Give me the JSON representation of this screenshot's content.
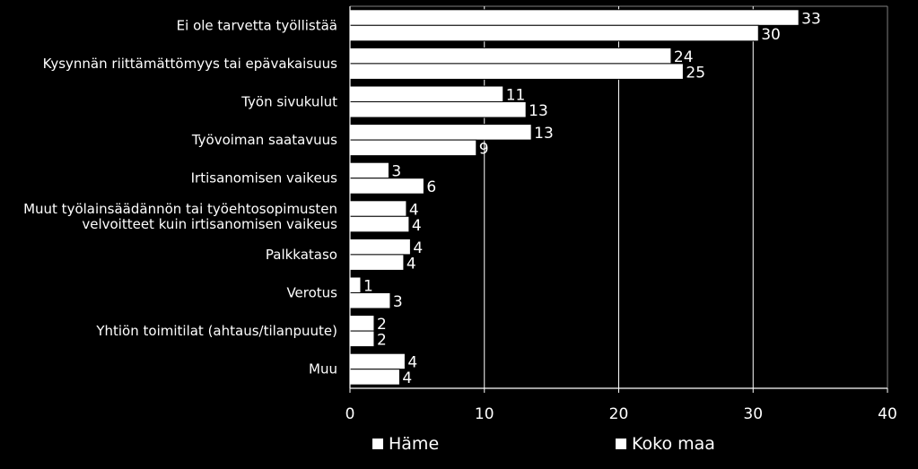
{
  "chart_data": {
    "type": "bar",
    "orientation": "horizontal",
    "categories": [
      "Ei ole tarvetta työllistää",
      "Kysynnän riittämättömyys tai epävakaisuus",
      "Työn sivukulut",
      "Työvoiman saatavuus",
      "Irtisanomisen vaikeus",
      "Muut työlainsäädännön tai työehtosopimusten velvoitteet kuin irtisanomisen vaikeus",
      "Palkkataso",
      "Verotus",
      "Yhtiön toimitilat (ahtaus/tilanpuute)",
      "Muu"
    ],
    "category_lines": [
      [
        "Ei ole tarvetta työllistää"
      ],
      [
        "Kysynnän riittämättömyys tai epävakaisuus"
      ],
      [
        "Työn sivukulut"
      ],
      [
        "Työvoiman saatavuus"
      ],
      [
        "Irtisanomisen vaikeus"
      ],
      [
        "Muut työlainsäädännön tai työehtosopimusten",
        "velvoitteet kuin irtisanomisen vaikeus"
      ],
      [
        "Palkkataso"
      ],
      [
        "Verotus"
      ],
      [
        "Yhtiön toimitilat (ahtaus/tilanpuute)"
      ],
      [
        "Muu"
      ]
    ],
    "series": [
      {
        "name": "Häme",
        "values": [
          33,
          24,
          11,
          13,
          3,
          4,
          4,
          1,
          2,
          4
        ],
        "plot_values": [
          33.4,
          23.9,
          11.4,
          13.5,
          2.9,
          4.2,
          4.5,
          0.8,
          1.8,
          4.1
        ]
      },
      {
        "name": "Koko maa",
        "values": [
          30,
          25,
          13,
          9,
          6,
          4,
          4,
          3,
          2,
          4
        ],
        "plot_values": [
          30.4,
          24.8,
          13.1,
          9.4,
          5.5,
          4.4,
          4.0,
          3.0,
          1.8,
          3.7
        ]
      }
    ],
    "xlim": [
      0,
      40
    ],
    "xticks": [
      0,
      10,
      20,
      30,
      40
    ],
    "grid": "vertical",
    "legend_position": "bottom",
    "colors": {
      "background": "#000000",
      "bar": "#ffffff",
      "bar_edge": "#000000",
      "text": "#ffffff",
      "grid": "#ffffff"
    }
  }
}
